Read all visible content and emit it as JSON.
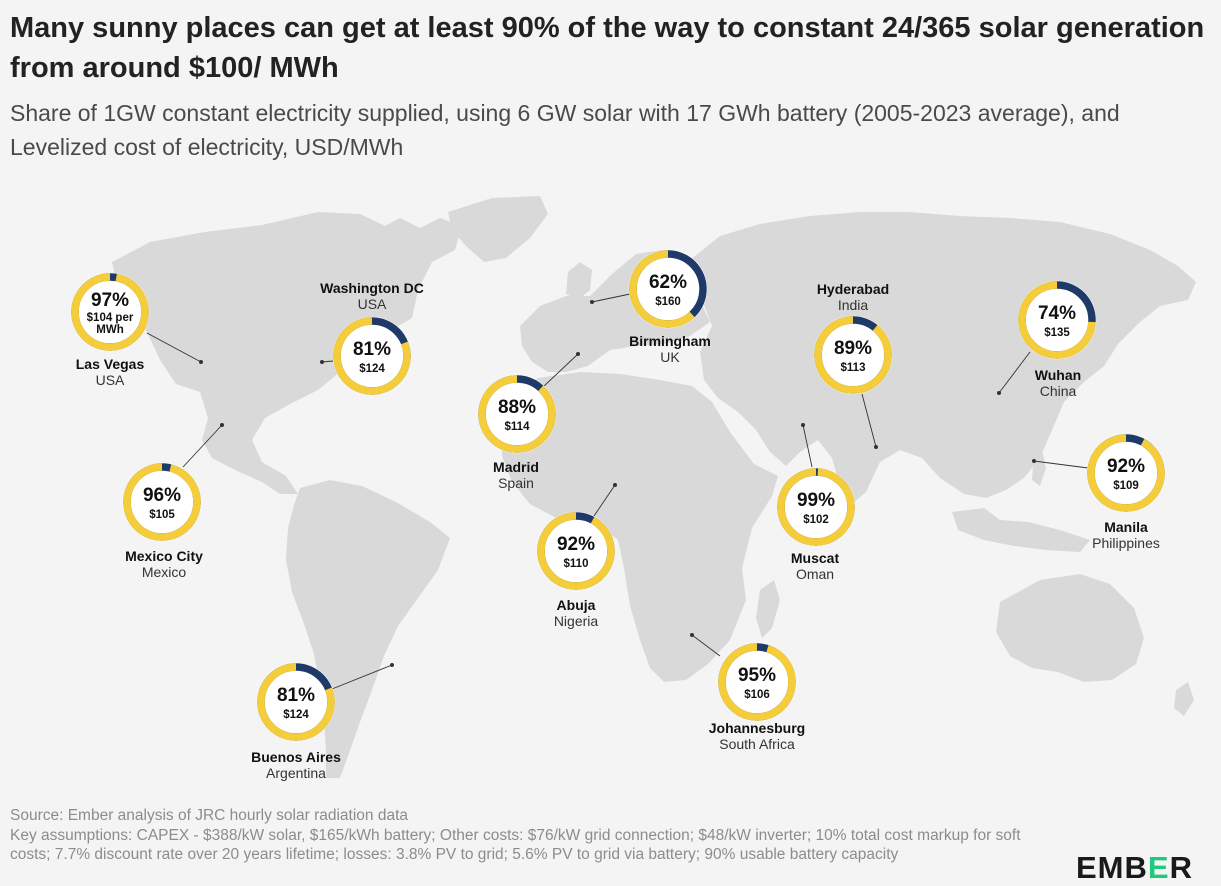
{
  "title": "Many sunny places can get at least 90% of the way to constant 24/365 solar generation from around $100/ MWh",
  "subtitle": "Share of 1GW constant electricity supplied, using 6 GW solar with 17 GWh battery (2005-2023 average), and Levelized cost of electricity, USD/MWh",
  "colors": {
    "solar": "#f5cd3a",
    "gap": "#1f3a68",
    "land": "#d9d9d9",
    "background": "#f4f4f4",
    "brand_accent": "#1fca7e"
  },
  "cities": [
    {
      "name": "Las Vegas",
      "country": "USA",
      "share": 97,
      "share_label": "97%",
      "cost_label": "$104 per MWh",
      "cost_lines": [
        "$104 per",
        "MWh"
      ]
    },
    {
      "name": "Washington DC",
      "country": "USA",
      "share": 81,
      "share_label": "81%",
      "cost_label": "$124"
    },
    {
      "name": "Mexico City",
      "country": "Mexico",
      "share": 96,
      "share_label": "96%",
      "cost_label": "$105"
    },
    {
      "name": "Buenos Aires",
      "country": "Argentina",
      "share": 81,
      "share_label": "81%",
      "cost_label": "$124"
    },
    {
      "name": "Madrid",
      "country": "Spain",
      "share": 88,
      "share_label": "88%",
      "cost_label": "$114"
    },
    {
      "name": "Birmingham",
      "country": "UK",
      "share": 62,
      "share_label": "62%",
      "cost_label": "$160"
    },
    {
      "name": "Abuja",
      "country": "Nigeria",
      "share": 92,
      "share_label": "92%",
      "cost_label": "$110"
    },
    {
      "name": "Johannesburg",
      "country": "South Africa",
      "share": 95,
      "share_label": "95%",
      "cost_label": "$106"
    },
    {
      "name": "Muscat",
      "country": "Oman",
      "share": 99,
      "share_label": "99%",
      "cost_label": "$102"
    },
    {
      "name": "Hyderabad",
      "country": "India",
      "share": 89,
      "share_label": "89%",
      "cost_label": "$113"
    },
    {
      "name": "Wuhan",
      "country": "China",
      "share": 74,
      "share_label": "74%",
      "cost_label": "$135"
    },
    {
      "name": "Manila",
      "country": "Philippines",
      "share": 92,
      "share_label": "92%",
      "cost_label": "$109"
    }
  ],
  "source": "Source: Ember analysis of JRC hourly solar radiation data",
  "assumptions": "Key assumptions: CAPEX - $388/kW solar, $165/kWh battery; Other costs: $76/kW grid connection; $48/kW inverter; 10% total cost markup for soft costs; 7.7% discount rate over 20 years lifetime; losses: 3.8% PV to grid; 5.6% PV to grid via battery; 90% usable battery capacity",
  "logo": {
    "part1": "EMB",
    "part2": "E",
    "part3": "R"
  }
}
